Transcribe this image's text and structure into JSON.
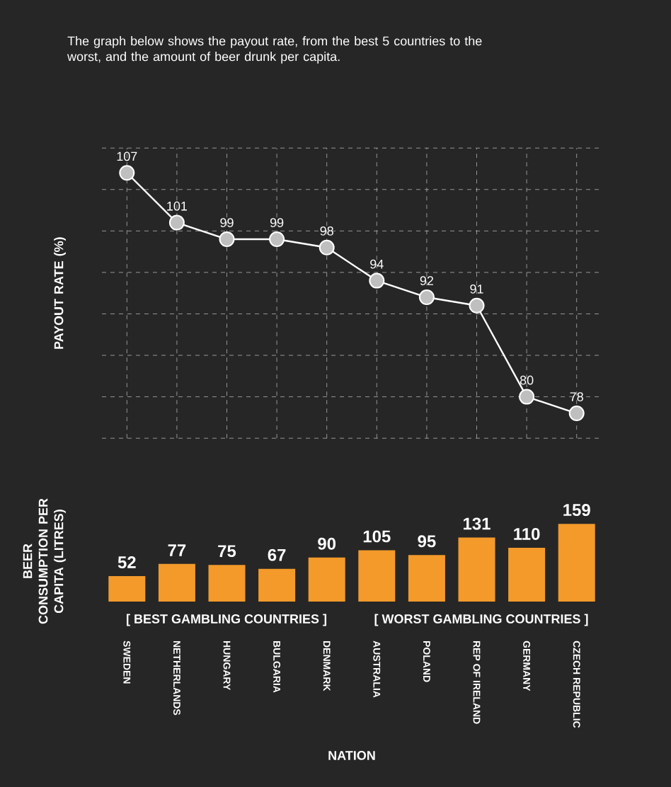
{
  "chart_data": [
    {
      "type": "line",
      "subtitle": "The graph below shows the payout rate, from the best 5 countries to the worst, and the amount of beer drunk per capita.",
      "ylabel": "PAYOUT RATE (%)",
      "categories": [
        null,
        null,
        null,
        null,
        null,
        null,
        null,
        null,
        null,
        null
      ],
      "series": [
        {
          "color": "#ffffff",
          "values": [
            107,
            101,
            99,
            99,
            98,
            94,
            92,
            91,
            80,
            78
          ]
        }
      ],
      "ylim": [
        75,
        110
      ],
      "data_labels": true,
      "marker": "circle",
      "grid": true,
      "tick_labels": false
    },
    {
      "type": "bar",
      "ylabel": "BEER CONSUMPTION PER CAPITA (LITRES)",
      "xlabel": "NATION",
      "categories": [
        "SWEDEN",
        "NETHERLANDS",
        "HUNGARY",
        "BULGARIA",
        "DENMARK",
        "AUSTRALIA",
        "POLAND",
        "REP OF IRELAND",
        "GERMANY",
        "CZECH REPUBLIC"
      ],
      "series": [
        {
          "color": "#f39a2b",
          "values": [
            52,
            77,
            75,
            67,
            90,
            105,
            95,
            131,
            110,
            159
          ]
        }
      ],
      "ylim": [
        0,
        165
      ],
      "data_labels": true,
      "tick_labels": "x",
      "annotations": [
        "[ BEST GAMBLING COUNTRIES ]",
        "[ WORST GAMBLING COUNTRIES ]"
      ]
    }
  ]
}
